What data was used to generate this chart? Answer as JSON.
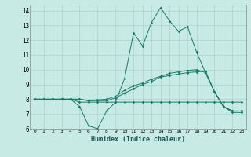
{
  "xlabel": "Humidex (Indice chaleur)",
  "xlim": [
    -0.5,
    23.5
  ],
  "ylim": [
    6,
    14.4
  ],
  "yticks": [
    6,
    7,
    8,
    9,
    10,
    11,
    12,
    13,
    14
  ],
  "xticks": [
    0,
    1,
    2,
    3,
    4,
    5,
    6,
    7,
    8,
    9,
    10,
    11,
    12,
    13,
    14,
    15,
    16,
    17,
    18,
    19,
    20,
    21,
    22,
    23
  ],
  "background_color": "#c8eae4",
  "grid_color": "#a8d4cc",
  "line_color": "#1a7a6a",
  "series": [
    {
      "x": [
        0,
        1,
        2,
        3,
        4,
        5,
        6,
        7,
        8,
        9,
        10,
        11,
        12,
        13,
        14,
        15,
        16,
        17,
        18,
        19,
        20,
        21,
        22,
        23
      ],
      "y": [
        8,
        8,
        8,
        8,
        8,
        7.5,
        6.2,
        6.0,
        7.2,
        7.8,
        9.4,
        12.5,
        11.6,
        13.2,
        14.2,
        13.3,
        12.6,
        12.9,
        11.2,
        9.8,
        8.5,
        7.5,
        7.1,
        7.1
      ]
    },
    {
      "x": [
        0,
        1,
        2,
        3,
        4,
        5,
        6,
        7,
        8,
        9,
        10,
        11,
        12,
        13,
        14,
        15,
        16,
        17,
        18,
        19,
        20,
        21,
        22,
        23
      ],
      "y": [
        8,
        8,
        8,
        8,
        8,
        7.8,
        7.8,
        7.8,
        7.8,
        7.8,
        7.8,
        7.8,
        7.8,
        7.8,
        7.8,
        7.8,
        7.8,
        7.8,
        7.8,
        7.8,
        7.8,
        7.8,
        7.8,
        7.8
      ]
    },
    {
      "x": [
        0,
        1,
        2,
        3,
        4,
        5,
        6,
        7,
        8,
        9,
        10,
        11,
        12,
        13,
        14,
        15,
        16,
        17,
        18,
        19,
        20,
        21,
        22,
        23
      ],
      "y": [
        8,
        8,
        8,
        8,
        8,
        8,
        7.9,
        7.9,
        7.9,
        8.1,
        8.4,
        8.7,
        9.0,
        9.2,
        9.5,
        9.6,
        9.7,
        9.8,
        9.85,
        9.9,
        8.5,
        7.5,
        7.2,
        7.2
      ]
    },
    {
      "x": [
        0,
        1,
        2,
        3,
        4,
        5,
        6,
        7,
        8,
        9,
        10,
        11,
        12,
        13,
        14,
        15,
        16,
        17,
        18,
        19,
        20,
        21,
        22,
        23
      ],
      "y": [
        8,
        8,
        8,
        8,
        8,
        8,
        7.9,
        7.95,
        8.0,
        8.2,
        8.6,
        8.9,
        9.1,
        9.35,
        9.55,
        9.75,
        9.85,
        9.95,
        10.0,
        9.8,
        8.5,
        7.5,
        7.2,
        7.2
      ]
    }
  ]
}
